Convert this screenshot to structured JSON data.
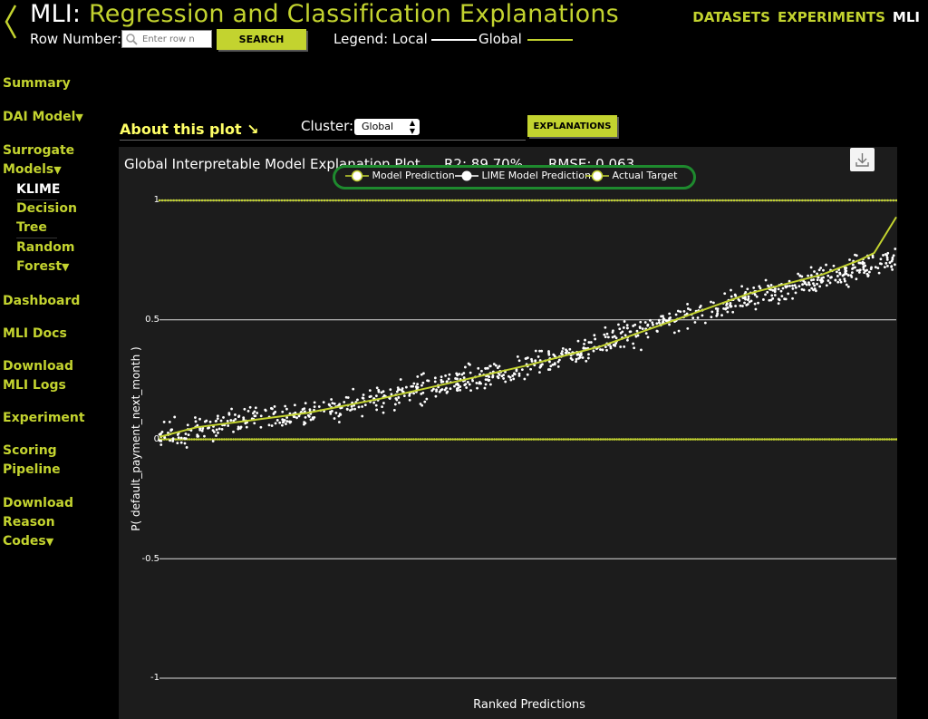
{
  "header": {
    "title_prefix": "MLI:",
    "title_main": "Regression and Classification Explanations",
    "row_number_label": "Row Number:",
    "row_input_placeholder": "Enter row n",
    "search_label": "SEARCH",
    "legend_label": "Legend: Local",
    "legend_global": "Global"
  },
  "topnav": {
    "datasets": "DATASETS",
    "experiments": "EXPERIMENTS",
    "mli": "MLI"
  },
  "sidebar": {
    "summary": "Summary",
    "dai_model": "DAI Model",
    "surrogate_1": "Surrogate",
    "surrogate_2": "Models",
    "klime": "KLIME",
    "decision_1": "Decision",
    "decision_2": "Tree",
    "random_1": "Random",
    "random_2": "Forest",
    "dashboard": "Dashboard",
    "mli_docs": "MLI Docs",
    "download_logs_1": "Download",
    "download_logs_2": "MLI Logs",
    "experiment": "Experiment",
    "scoring_1": "Scoring",
    "scoring_2": "Pipeline",
    "reason_1": "Download",
    "reason_2": "Reason",
    "reason_3": "Codes",
    "triangle": "▼"
  },
  "controls": {
    "about": "About this plot ↘",
    "cluster_label": "Cluster:",
    "cluster_value": "Global",
    "explanations": "EXPLANATIONS"
  },
  "plot": {
    "title": "Global Interpretable Model Explanation Plot",
    "r2": "R2: 89.70%",
    "rmse": "RMSE: 0.063",
    "legend": [
      "Model Prediction",
      "LIME Model Prediction",
      "Actual Target"
    ]
  },
  "colors": {
    "accent": "#c3d32f",
    "legend_border": "#1e8a2e",
    "plot_bg": "#1c1c1c"
  },
  "chart_data": {
    "type": "scatter",
    "xlabel": "Ranked Predictions",
    "ylabel": "P( default_payment_next_month )",
    "y_ticks": [
      "1",
      "0.5",
      "0",
      "-0.5",
      "-1"
    ],
    "ylim": [
      -1,
      1
    ],
    "grid": true,
    "series": [
      {
        "name": "Model Prediction",
        "type": "line",
        "color": "#c3d32f",
        "x": [
          0,
          0.05,
          0.1,
          0.2,
          0.3,
          0.4,
          0.5,
          0.6,
          0.7,
          0.8,
          0.85,
          0.9,
          0.95,
          0.97,
          1.0
        ],
        "y": [
          0.01,
          0.05,
          0.07,
          0.11,
          0.17,
          0.24,
          0.31,
          0.39,
          0.5,
          0.61,
          0.65,
          0.69,
          0.75,
          0.78,
          0.93
        ]
      },
      {
        "name": "LIME Model Prediction",
        "type": "scatter",
        "color": "#ffffff",
        "trend_x": [
          0,
          0.1,
          0.2,
          0.3,
          0.4,
          0.5,
          0.6,
          0.7,
          0.8,
          0.9,
          1.0
        ],
        "trend_y": [
          0.02,
          0.07,
          0.11,
          0.17,
          0.24,
          0.31,
          0.39,
          0.5,
          0.59,
          0.67,
          0.76
        ]
      },
      {
        "name": "Actual Target",
        "type": "scatter",
        "color": "#c3d32f",
        "values": [
          0,
          1
        ]
      }
    ]
  }
}
